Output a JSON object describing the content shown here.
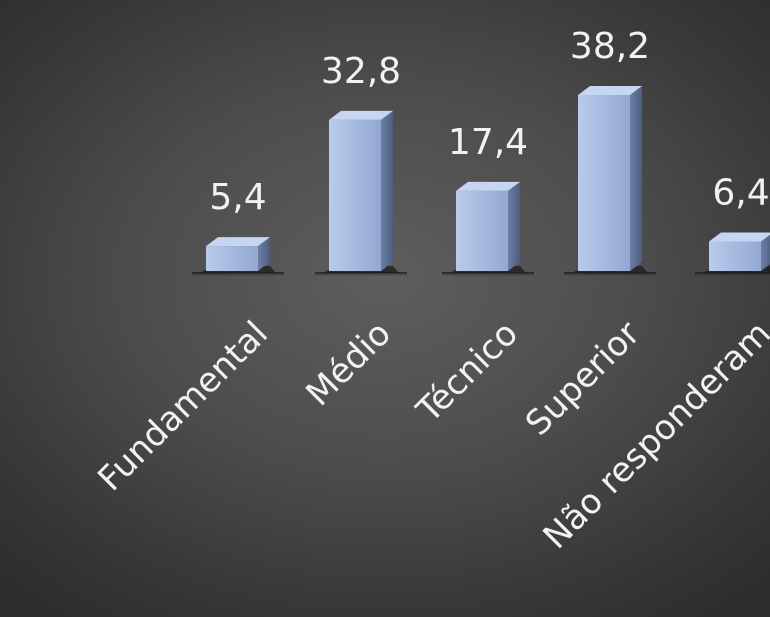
{
  "chart_data": {
    "type": "bar",
    "categories": [
      "Fundamental",
      "Médio",
      "Técnico",
      "Superior",
      "Não responderam"
    ],
    "values": [
      5.4,
      32.8,
      17.4,
      38.2,
      6.4
    ],
    "value_labels": [
      "5,4",
      "32,8",
      "17,4",
      "38,2",
      "6,4"
    ],
    "title": "",
    "xlabel": "",
    "ylabel": "",
    "ylim": [
      0,
      38.2
    ],
    "grid": false,
    "legend": "none",
    "style": "3d-column",
    "colors": {
      "bar_front": "#a9bde3",
      "bar_side": "#5f7296",
      "bar_top": "#c6d5f0",
      "label": "#f2f2f2",
      "background": "#4a4a4a"
    }
  }
}
